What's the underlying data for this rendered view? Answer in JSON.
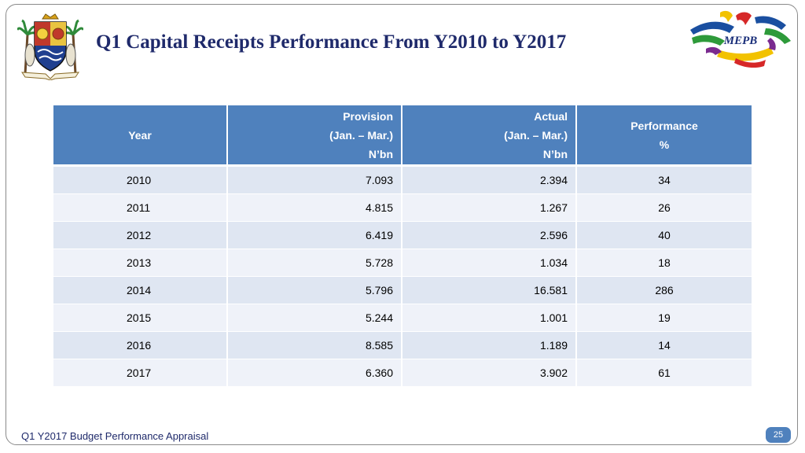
{
  "slide": {
    "title": "Q1 Capital Receipts Performance From Y2010 to Y2017",
    "footer": "Q1 Y2017 Budget Performance Appraisal",
    "page_number": "25",
    "logos": {
      "left": "lagos-state-crest",
      "right": "mepb-logo",
      "right_text": "MEPB"
    }
  },
  "table": {
    "headers": {
      "year": "Year",
      "provision": [
        "Provision",
        "(Jan. – Mar.)",
        "N’bn"
      ],
      "actual": [
        "Actual",
        "(Jan. – Mar.)",
        "N’bn"
      ],
      "performance": [
        "Performance",
        "%"
      ]
    },
    "rows": [
      {
        "year": "2010",
        "provision": "7.093",
        "actual": "2.394",
        "performance": "34"
      },
      {
        "year": "2011",
        "provision": "4.815",
        "actual": "1.267",
        "performance": "26"
      },
      {
        "year": "2012",
        "provision": "6.419",
        "actual": "2.596",
        "performance": "40"
      },
      {
        "year": "2013",
        "provision": "5.728",
        "actual": "1.034",
        "performance": "18"
      },
      {
        "year": "2014",
        "provision": "5.796",
        "actual": "16.581",
        "performance": "286"
      },
      {
        "year": "2015",
        "provision": "5.244",
        "actual": "1.001",
        "performance": "19"
      },
      {
        "year": "2016",
        "provision": "8.585",
        "actual": "1.189",
        "performance": "14"
      },
      {
        "year": "2017",
        "provision": "6.360",
        "actual": "3.902",
        "performance": "61"
      }
    ]
  },
  "colors": {
    "header_bg": "#4f81bd",
    "row_dark": "#dfe6f2",
    "row_light": "#eff2f9",
    "title": "#1f2a6b"
  }
}
